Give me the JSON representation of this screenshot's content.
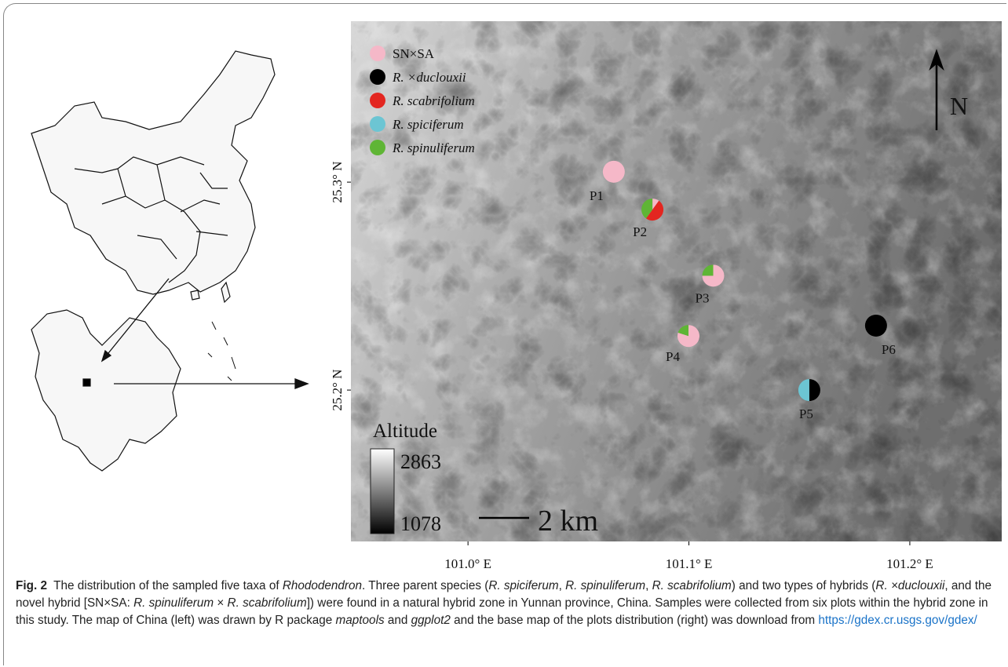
{
  "figure": {
    "legend": [
      {
        "label": "SN×SA",
        "color": "#f5b8c8",
        "italic": false
      },
      {
        "label": "R. ×duclouxii",
        "color": "#000000",
        "italic": true
      },
      {
        "label": "R. scabrifolium",
        "color": "#e32620",
        "italic": true
      },
      {
        "label": "R. spiciferum",
        "color": "#6cc5d3",
        "italic": true
      },
      {
        "label": "R. spinuliferum",
        "color": "#5fb535",
        "italic": true
      }
    ],
    "north": "N",
    "xlim": [
      100.947,
      101.2416
    ],
    "ylim": [
      25.1272,
      25.3774
    ],
    "xticks": [
      {
        "value": 101.0,
        "label": "101.0° E"
      },
      {
        "value": 101.1,
        "label": "101.1° E"
      },
      {
        "value": 101.2,
        "label": "101.2° E"
      }
    ],
    "yticks": [
      {
        "value": 25.3,
        "label": "25.3° N"
      },
      {
        "value": 25.2,
        "label": "25.2° N"
      }
    ],
    "scale_bar": "2 km",
    "altitude": {
      "title": "Altitude",
      "max": "2863",
      "min": "1078"
    },
    "plots": [
      {
        "label": "P1",
        "lon": 101.066,
        "lat": 25.305,
        "shares": [
          100,
          0,
          0,
          0,
          0
        ]
      },
      {
        "label": "P2",
        "lon": 101.0835,
        "lat": 25.2868,
        "shares": [
          10,
          0,
          50,
          0,
          40
        ]
      },
      {
        "label": "P3",
        "lon": 101.111,
        "lat": 25.255,
        "shares": [
          75,
          0,
          0,
          0,
          25
        ]
      },
      {
        "label": "P4",
        "lon": 101.0998,
        "lat": 25.226,
        "shares": [
          80,
          0,
          0,
          0,
          20
        ]
      },
      {
        "label": "P5",
        "lon": 101.1545,
        "lat": 25.2,
        "shares": [
          0,
          50,
          0,
          50,
          0
        ]
      },
      {
        "label": "P6",
        "lon": 101.1847,
        "lat": 25.231,
        "shares": [
          0,
          100,
          0,
          0,
          0
        ]
      }
    ]
  },
  "caption": [
    {
      "text": "Fig. 2",
      "style": "bold"
    },
    {
      "text": "  The distribution of the sampled five taxa of ",
      "style": "plain"
    },
    {
      "text": "Rhododendron",
      "style": "italic"
    },
    {
      "text": ". Three parent species (",
      "style": "plain"
    },
    {
      "text": "R. spiciferum",
      "style": "italic"
    },
    {
      "text": ", ",
      "style": "plain"
    },
    {
      "text": "R. spinuliferum",
      "style": "italic"
    },
    {
      "text": ", ",
      "style": "plain"
    },
    {
      "text": "R. scabrifolium",
      "style": "italic"
    },
    {
      "text": ") and two types of hybrids (",
      "style": "plain"
    },
    {
      "text": "R. ×duclouxii",
      "style": "italic"
    },
    {
      "text": ", and the novel hybrid [SN×SA: ",
      "style": "plain"
    },
    {
      "text": "R. spinuliferum",
      "style": "italic"
    },
    {
      "text": " × ",
      "style": "plain"
    },
    {
      "text": "R. scabrifolium",
      "style": "italic"
    },
    {
      "text": "]) were found in a natural hybrid zone in Yunnan province, China. Samples were collected from six plots within the hybrid zone in this study. The map of China (left) was drawn by R package ",
      "style": "plain"
    },
    {
      "text": "maptools",
      "style": "italic"
    },
    {
      "text": " and ",
      "style": "plain"
    },
    {
      "text": "ggplot2",
      "style": "italic"
    },
    {
      "text": " and the base map of the plots distribution (right) was download from ",
      "style": "plain"
    },
    {
      "text": "https://gdex.cr.usgs.gov/gdex/",
      "style": "link"
    }
  ]
}
